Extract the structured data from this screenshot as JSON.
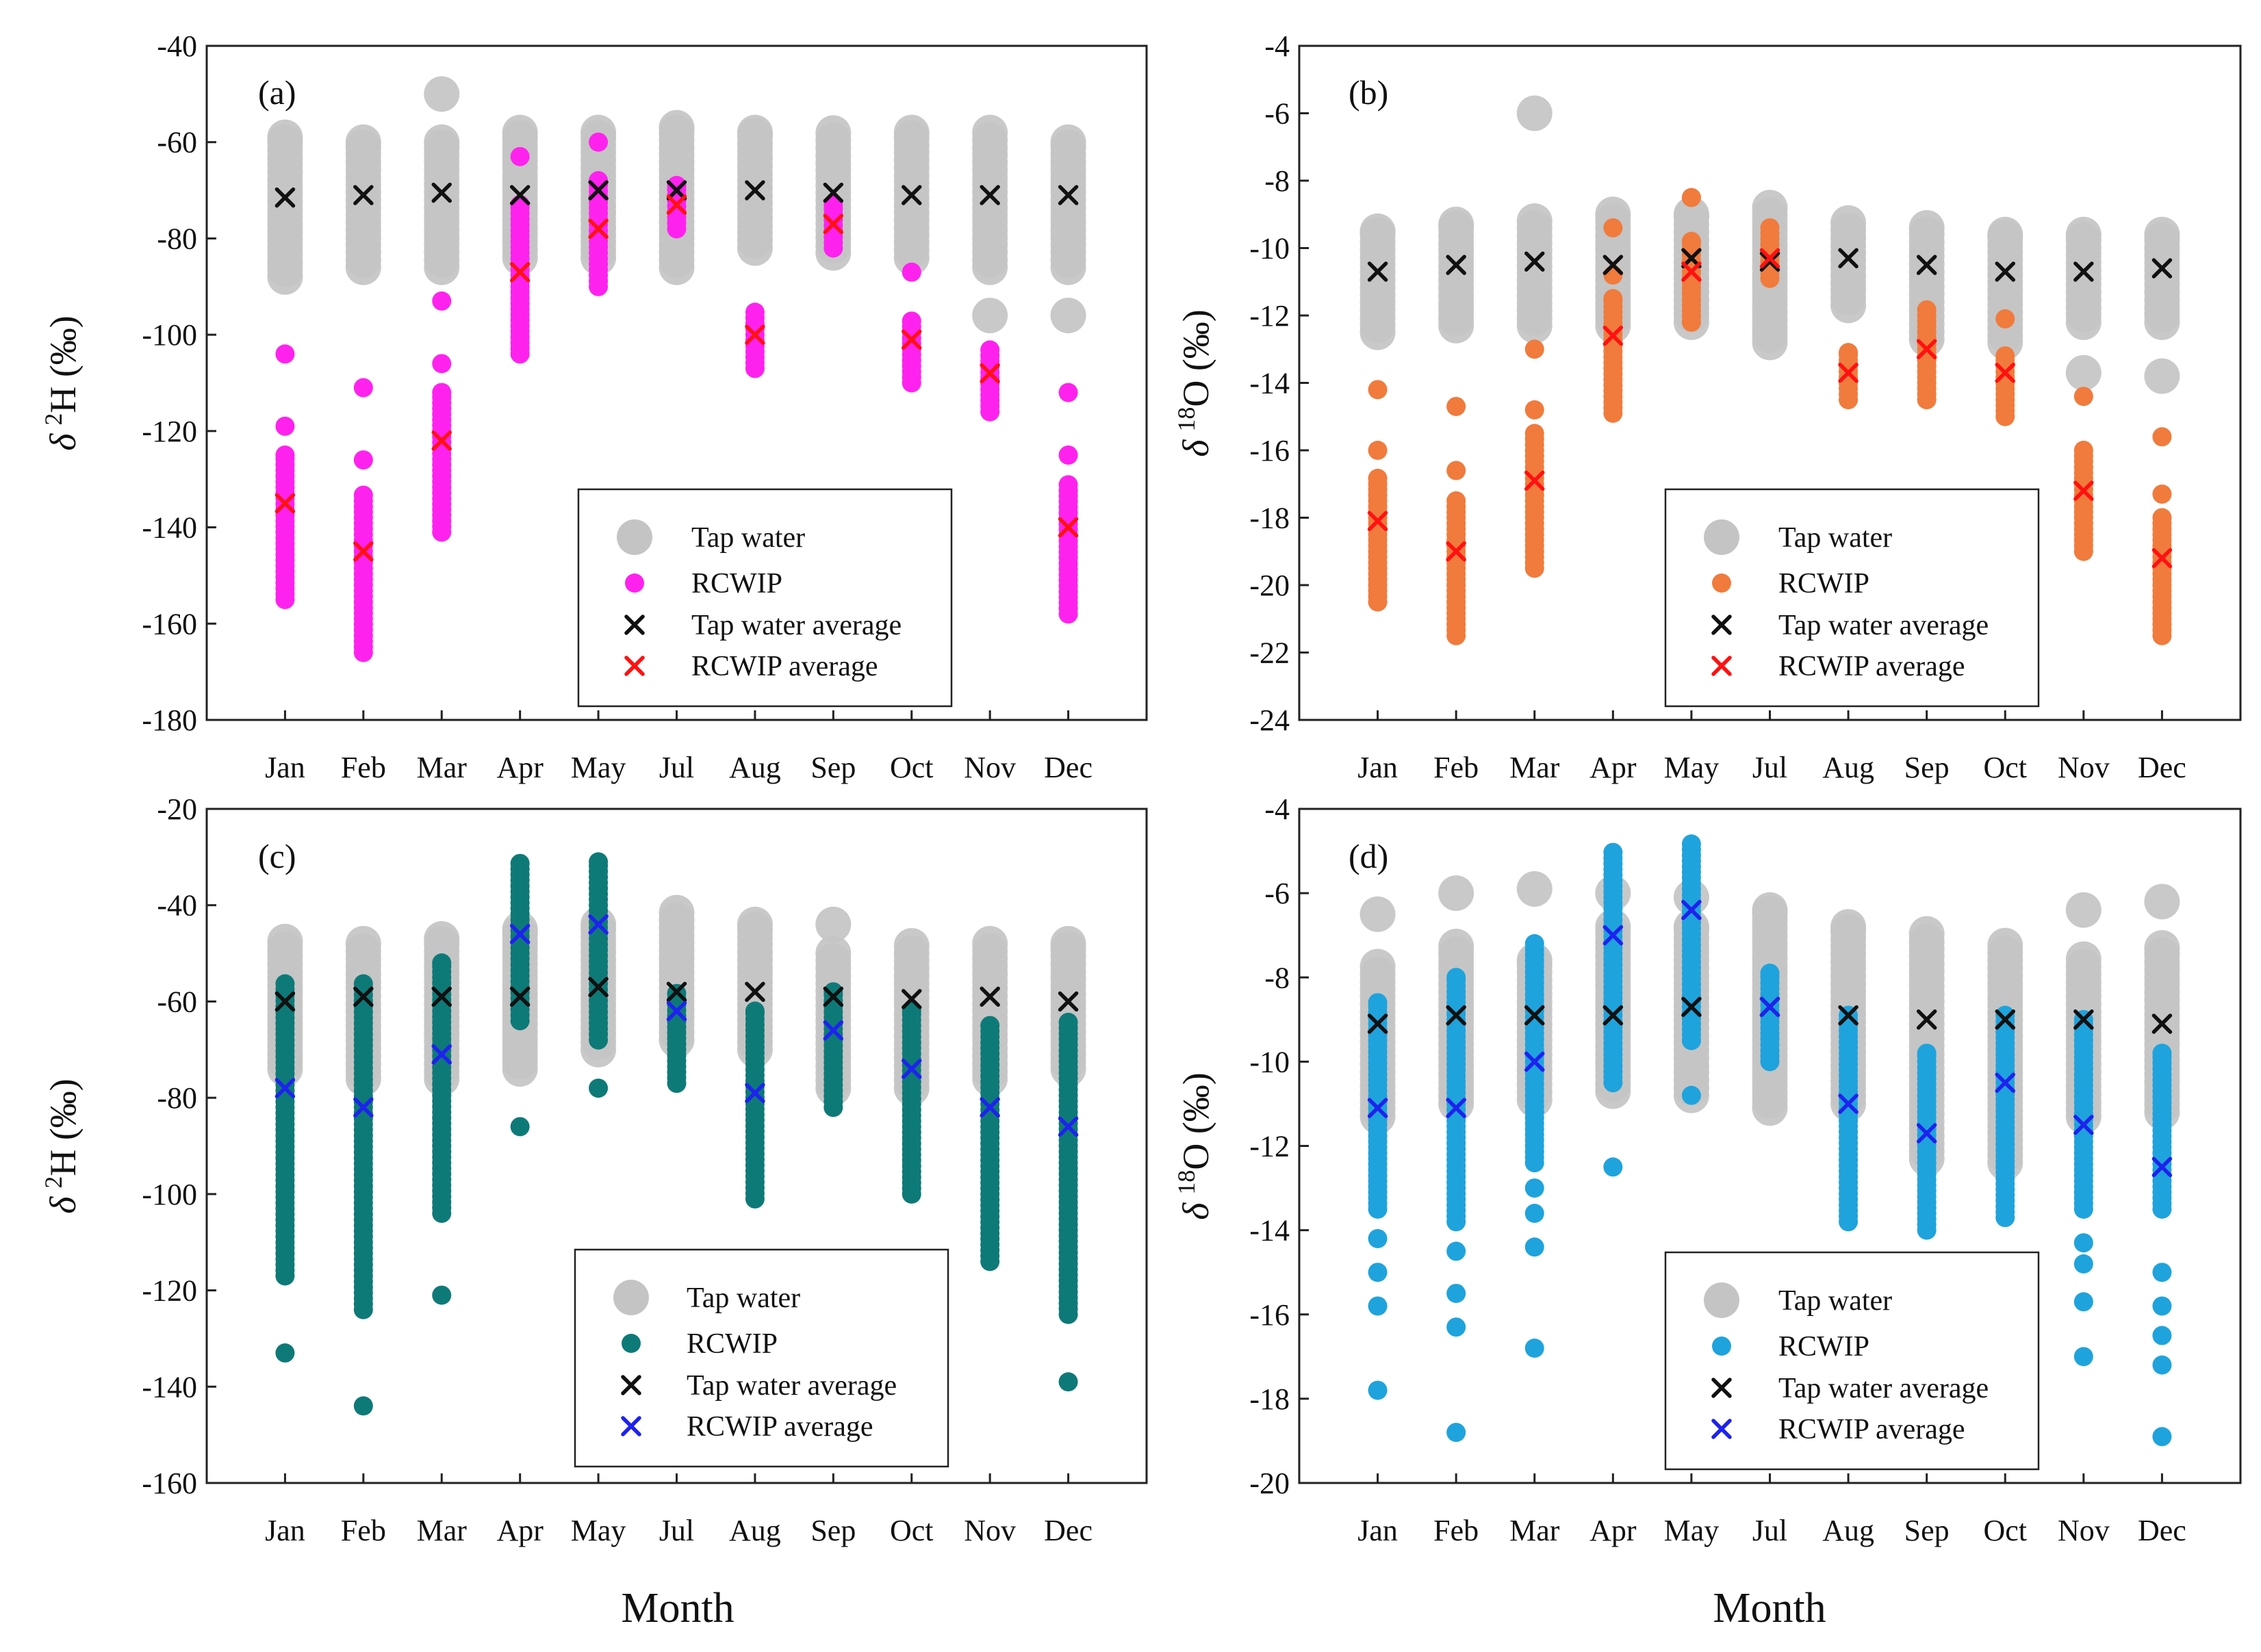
{
  "figure_title": "",
  "shared": {
    "x_axis_title": "Month",
    "months": [
      "Jan",
      "Feb",
      "Mar",
      "Apr",
      "May",
      "Jul",
      "Aug",
      "Sep",
      "Oct",
      "Nov",
      "Dec"
    ],
    "legend": {
      "tap": "Tap water",
      "rcwip": "RCWIP",
      "tap_avg": "Tap water average",
      "rcwip_avg": "RCWIP average"
    }
  },
  "chart_data": [
    {
      "type": "scatter",
      "panel_tag": "(a)",
      "title": "",
      "xlabel": "",
      "ylabel": {
        "symbol": "δ",
        "sup": "2",
        "element": "H (‰)"
      },
      "ylim": [
        -180,
        -40
      ],
      "yticks": [
        -40,
        -60,
        -80,
        -100,
        -120,
        -140,
        -160,
        -180
      ],
      "categories": [
        "Jan",
        "Feb",
        "Mar",
        "Apr",
        "May",
        "Jul",
        "Aug",
        "Sep",
        "Oct",
        "Nov",
        "Dec"
      ],
      "colors": {
        "tap": "#c4c4c4",
        "rcwip": "#ff22ee",
        "tap_avg": "#111111",
        "rcwip_avg": "#ff1111"
      },
      "series": [
        {
          "name": "Tap water",
          "ranges": [
            [
              -88,
              -59
            ],
            [
              -86,
              -60
            ],
            [
              -86,
              -60
            ],
            [
              -84,
              -58
            ],
            [
              -84,
              -58
            ],
            [
              -86,
              -57
            ],
            [
              -82,
              -58
            ],
            [
              -83,
              -58
            ],
            [
              -84,
              -58
            ],
            [
              -86,
              -58
            ],
            [
              -86,
              -60
            ]
          ],
          "outliers": [
            [],
            [],
            [
              -50
            ],
            [],
            [],
            [],
            [],
            [],
            [],
            [
              -96
            ],
            [
              -96
            ]
          ]
        },
        {
          "name": "RCWIP",
          "ranges": [
            [
              -155,
              -125
            ],
            [
              -166,
              -133
            ],
            [
              -141,
              -112
            ],
            [
              -104,
              -73
            ],
            [
              -90,
              -68
            ],
            [
              -78,
              -69
            ],
            [
              -107,
              -95
            ],
            [
              -82,
              -73
            ],
            [
              -110,
              -97
            ],
            [
              -116,
              -103
            ],
            [
              -158,
              -131
            ]
          ],
          "outliers": [
            [
              -104,
              -119
            ],
            [
              -111,
              -126
            ],
            [
              -93,
              -106
            ],
            [
              -63
            ],
            [
              -60
            ],
            [],
            [],
            [],
            [
              -87
            ],
            [],
            [
              -112,
              -125
            ]
          ]
        },
        {
          "name": "Tap water average",
          "values": [
            -71.5,
            -71,
            -70.5,
            -71,
            -70,
            -70,
            -70,
            -70.5,
            -71,
            -71,
            -71
          ]
        },
        {
          "name": "RCWIP average",
          "values": [
            -135,
            -145,
            -122,
            -87,
            -78,
            -73,
            -100,
            -77,
            -101,
            -108,
            -140
          ]
        }
      ]
    },
    {
      "type": "scatter",
      "panel_tag": "(b)",
      "title": "",
      "xlabel": "",
      "ylabel": {
        "symbol": "δ",
        "sup": "18",
        "element": "O (‰)"
      },
      "ylim": [
        -24,
        -4
      ],
      "yticks": [
        -4,
        -6,
        -8,
        -10,
        -12,
        -14,
        -16,
        -18,
        -20,
        -22,
        -24
      ],
      "categories": [
        "Jan",
        "Feb",
        "Mar",
        "Apr",
        "May",
        "Jul",
        "Aug",
        "Sep",
        "Oct",
        "Nov",
        "Dec"
      ],
      "colors": {
        "tap": "#c4c4c4",
        "rcwip": "#f07b3c",
        "tap_avg": "#111111",
        "rcwip_avg": "#ff1111"
      },
      "series": [
        {
          "name": "Tap water",
          "ranges": [
            [
              -12.5,
              -9.5
            ],
            [
              -12.3,
              -9.3
            ],
            [
              -12.3,
              -9.2
            ],
            [
              -12.3,
              -9.0
            ],
            [
              -12.2,
              -9.0
            ],
            [
              -12.8,
              -8.8
            ],
            [
              -11.7,
              -9.2
            ],
            [
              -12.7,
              -9.4
            ],
            [
              -12.8,
              -9.6
            ],
            [
              -12.2,
              -9.6
            ],
            [
              -12.2,
              -9.6
            ]
          ],
          "outliers": [
            [],
            [],
            [
              -6.0
            ],
            [],
            [],
            [],
            [],
            [],
            [],
            [
              -13.7
            ],
            [
              -13.8
            ]
          ]
        },
        {
          "name": "RCWIP",
          "ranges": [
            [
              -20.5,
              -16.8
            ],
            [
              -21.5,
              -17.5
            ],
            [
              -19.5,
              -15.5
            ],
            [
              -14.9,
              -11.5
            ],
            [
              -12.2,
              -9.8
            ],
            [
              -10.9,
              -9.4
            ],
            [
              -14.5,
              -13.1
            ],
            [
              -14.5,
              -11.8
            ],
            [
              -15.0,
              -13.2
            ],
            [
              -19.0,
              -16.0
            ],
            [
              -21.5,
              -18.0
            ]
          ],
          "outliers": [
            [
              -14.2,
              -16.0
            ],
            [
              -14.7,
              -16.6
            ],
            [
              -13.0,
              -14.8
            ],
            [
              -9.4,
              -10.8
            ],
            [
              -8.5
            ],
            [],
            [],
            [],
            [
              -12.1
            ],
            [
              -14.4
            ],
            [
              -15.6,
              -17.3
            ]
          ]
        },
        {
          "name": "Tap water average",
          "values": [
            -10.7,
            -10.5,
            -10.4,
            -10.5,
            -10.3,
            -10.4,
            -10.3,
            -10.5,
            -10.7,
            -10.7,
            -10.6
          ]
        },
        {
          "name": "RCWIP average",
          "values": [
            -18.1,
            -19.0,
            -16.9,
            -12.6,
            -10.7,
            -10.3,
            -13.7,
            -13.0,
            -13.7,
            -17.2,
            -19.2
          ]
        }
      ]
    },
    {
      "type": "scatter",
      "panel_tag": "(c)",
      "title": "",
      "xlabel": "Month",
      "ylabel": {
        "symbol": "δ",
        "sup": "2",
        "element": "H (‰)"
      },
      "ylim": [
        -160,
        -20
      ],
      "yticks": [
        -20,
        -40,
        -60,
        -80,
        -100,
        -120,
        -140,
        -160
      ],
      "categories": [
        "Jan",
        "Feb",
        "Mar",
        "Apr",
        "May",
        "Jul",
        "Aug",
        "Sep",
        "Oct",
        "Nov",
        "Dec"
      ],
      "colors": {
        "tap": "#c4c4c4",
        "rcwip": "#0e7a78",
        "tap_avg": "#111111",
        "rcwip_avg": "#1e22ee"
      },
      "series": [
        {
          "name": "Tap water",
          "ranges": [
            [
              -74,
              -47
            ],
            [
              -76,
              -48
            ],
            [
              -76,
              -47
            ],
            [
              -74,
              -45
            ],
            [
              -70,
              -44
            ],
            [
              -68,
              -41
            ],
            [
              -70,
              -44
            ],
            [
              -78,
              -50
            ],
            [
              -78,
              -48
            ],
            [
              -76,
              -48
            ],
            [
              -74,
              -48
            ]
          ],
          "outliers": [
            [],
            [],
            [],
            [],
            [],
            [],
            [],
            [
              -44
            ],
            [],
            [],
            []
          ]
        },
        {
          "name": "RCWIP",
          "ranges": [
            [
              -117,
              -56
            ],
            [
              -124,
              -56
            ],
            [
              -104,
              -52
            ],
            [
              -64,
              -31
            ],
            [
              -68,
              -31
            ],
            [
              -77,
              -58
            ],
            [
              -101,
              -62
            ],
            [
              -82,
              -58
            ],
            [
              -100,
              -62
            ],
            [
              -114,
              -65
            ],
            [
              -125,
              -64
            ]
          ],
          "outliers": [
            [
              -133
            ],
            [
              -144
            ],
            [
              -121
            ],
            [
              -86
            ],
            [
              -78
            ],
            [],
            [],
            [],
            [],
            [],
            [
              -139
            ]
          ]
        },
        {
          "name": "Tap water average",
          "values": [
            -60,
            -59,
            -59,
            -59,
            -57,
            -58,
            -58,
            -59,
            -59.5,
            -59,
            -60
          ]
        },
        {
          "name": "RCWIP average",
          "values": [
            -78,
            -82,
            -71,
            -46,
            -44,
            -62,
            -79,
            -66,
            -74,
            -82,
            -86
          ]
        }
      ]
    },
    {
      "type": "scatter",
      "panel_tag": "(d)",
      "title": "",
      "xlabel": "Month",
      "ylabel": {
        "symbol": "δ",
        "sup": "18",
        "element": "O (‰)"
      },
      "ylim": [
        -20,
        -4
      ],
      "yticks": [
        -4,
        -6,
        -8,
        -10,
        -12,
        -14,
        -16,
        -18,
        -20
      ],
      "categories": [
        "Jan",
        "Feb",
        "Mar",
        "Apr",
        "May",
        "Jul",
        "Aug",
        "Sep",
        "Oct",
        "Nov",
        "Dec"
      ],
      "colors": {
        "tap": "#c4c4c4",
        "rcwip": "#1fa3dc",
        "tap_avg": "#111111",
        "rcwip_avg": "#1e22ee"
      },
      "series": [
        {
          "name": "Tap water",
          "ranges": [
            [
              -11.3,
              -7.7
            ],
            [
              -11.0,
              -7.2
            ],
            [
              -10.9,
              -7.6
            ],
            [
              -10.7,
              -6.8
            ],
            [
              -10.8,
              -6.8
            ],
            [
              -11.1,
              -6.4
            ],
            [
              -11.0,
              -6.8
            ],
            [
              -12.3,
              -6.9
            ],
            [
              -12.4,
              -7.2
            ],
            [
              -11.3,
              -7.5
            ],
            [
              -11.2,
              -7.3
            ]
          ],
          "outliers": [
            [
              -6.5
            ],
            [
              -6.0
            ],
            [
              -5.9
            ],
            [
              -6.0
            ],
            [
              -6.1
            ],
            [],
            [],
            [],
            [],
            [
              -6.4
            ],
            [
              -6.2
            ]
          ]
        },
        {
          "name": "RCWIP",
          "ranges": [
            [
              -13.5,
              -8.6
            ],
            [
              -13.8,
              -8.0
            ],
            [
              -12.4,
              -7.2
            ],
            [
              -10.5,
              -5.0
            ],
            [
              -9.5,
              -4.8
            ],
            [
              -10.0,
              -7.9
            ],
            [
              -13.8,
              -8.9
            ],
            [
              -14.0,
              -9.8
            ],
            [
              -13.7,
              -8.9
            ],
            [
              -13.5,
              -9.0
            ],
            [
              -13.5,
              -9.8
            ]
          ],
          "outliers": [
            [
              -17.8,
              -15.8,
              -15.0,
              -14.2
            ],
            [
              -18.8,
              -16.3,
              -15.5,
              -14.5
            ],
            [
              -16.8,
              -14.4,
              -13.6,
              -13.0
            ],
            [
              -12.5
            ],
            [
              -10.8
            ],
            [],
            [],
            [],
            [],
            [
              -17.0,
              -15.7,
              -14.8,
              -14.3
            ],
            [
              -18.9,
              -17.2,
              -16.5,
              -15.8,
              -15.0
            ]
          ]
        },
        {
          "name": "Tap water average",
          "values": [
            -9.1,
            -8.9,
            -8.9,
            -8.9,
            -8.7,
            -8.7,
            -8.9,
            -9.0,
            -9.0,
            -9.0,
            -9.1
          ]
        },
        {
          "name": "RCWIP average",
          "values": [
            -11.1,
            -11.1,
            -10.0,
            -7.0,
            -6.4,
            -8.7,
            -11.0,
            -11.7,
            -10.5,
            -11.5,
            -12.5
          ]
        }
      ]
    }
  ]
}
